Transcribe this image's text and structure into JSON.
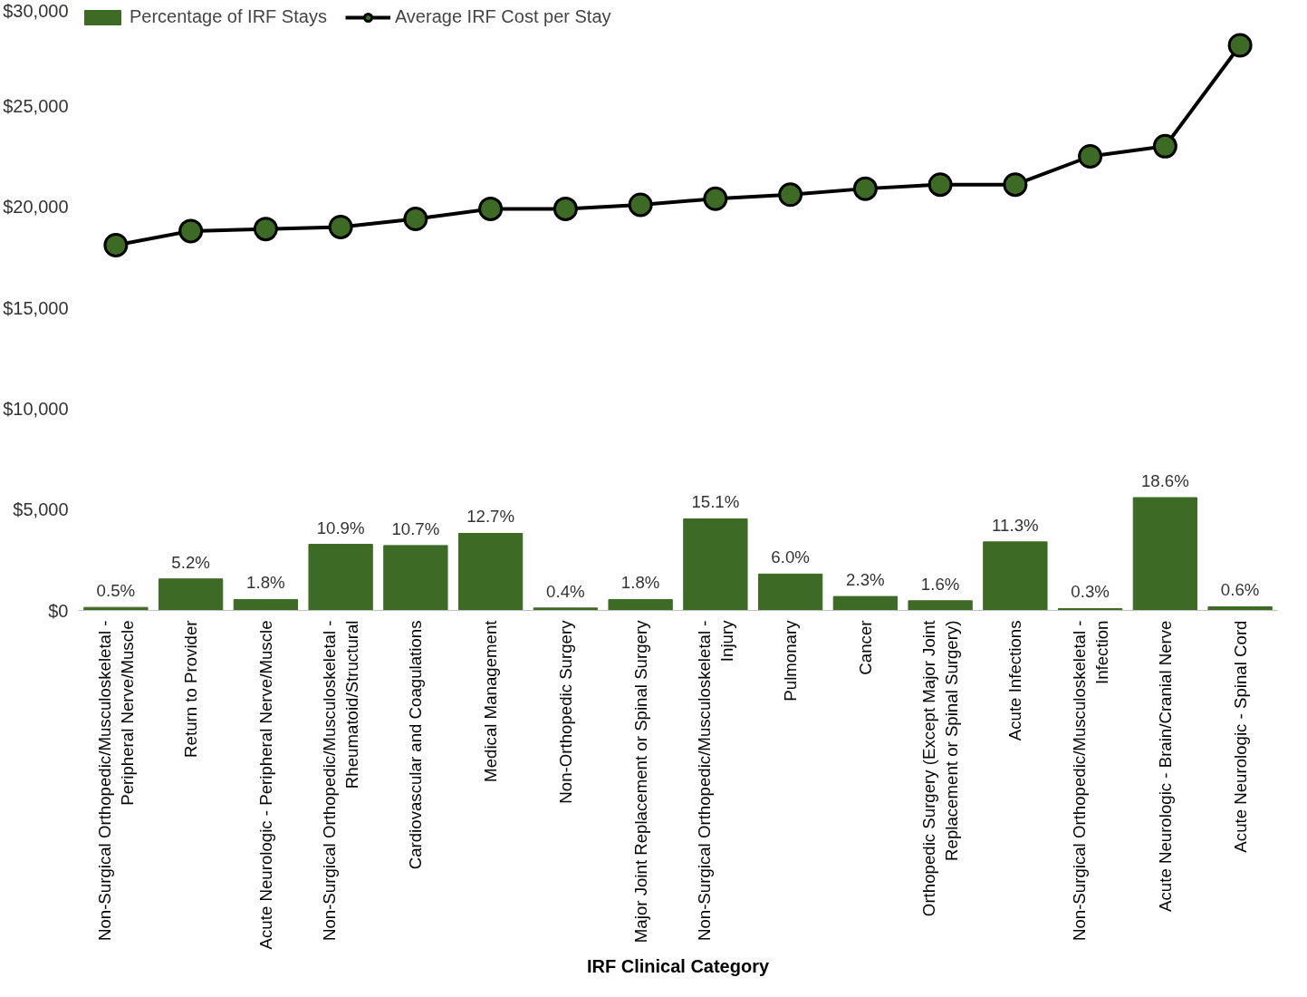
{
  "chart_data": {
    "type": "bar",
    "xlabel": "IRF Clinical Category",
    "categories": [
      "Non-Surgical Orthopedic/Musculoskeletal -\nPeripheral Nerve/Muscle",
      "Return to Provider",
      "Acute Neurologic - Peripheral Nerve/Muscle",
      "Non-Surgical Orthopedic/Musculoskeletal -\nRheumatoid/Structural",
      "Cardiovascular and Coagulations",
      "Medical Management",
      "Non-Orthopedic Surgery",
      "Major Joint Replacement or Spinal Surgery",
      "Non-Surgical Orthopedic/Musculoskeletal -\nInjury",
      "Pulmonary",
      "Cancer",
      "Orthopedic Surgery (Except Major Joint\nReplacement or Spinal Surgery)",
      "Acute Infections",
      "Non-Surgical Orthopedic/Musculoskeletal -\nInfection",
      "Acute Neurologic - Brain/Cranial Nerve",
      "Acute Neurologic - Spinal Cord"
    ],
    "series": [
      {
        "name": "Percentage of IRF Stays",
        "axis": "y2",
        "color": "#3d6b26",
        "values": [
          0.5,
          5.2,
          1.8,
          10.9,
          10.7,
          12.7,
          0.4,
          1.8,
          15.1,
          6.0,
          2.3,
          1.6,
          11.3,
          0.3,
          18.6,
          0.6
        ],
        "value_labels": [
          "0.5%",
          "5.2%",
          "1.8%",
          "10.9%",
          "10.7%",
          "12.7%",
          "0.4%",
          "1.8%",
          "15.1%",
          "6.0%",
          "2.3%",
          "1.6%",
          "11.3%",
          "0.3%",
          "18.6%",
          "0.6%"
        ]
      },
      {
        "name": "Average IRF Cost per Stay",
        "type": "line",
        "color": "#3d6b26",
        "values": [
          18100,
          18800,
          18900,
          19000,
          19400,
          19900,
          19900,
          20100,
          20400,
          20600,
          20900,
          21100,
          21100,
          22500,
          23000,
          28000
        ]
      }
    ],
    "ylim": [
      0,
      30000
    ],
    "yticks": [
      {
        "value": 0,
        "label": "$0"
      },
      {
        "value": 5000,
        "label": "$5,000"
      },
      {
        "value": 10000,
        "label": "$10,000"
      },
      {
        "value": 15000,
        "label": "$15,000"
      },
      {
        "value": 20000,
        "label": "$20,000"
      },
      {
        "value": 25000,
        "label": "$25,000"
      },
      {
        "value": 30000,
        "label": "$30,000"
      }
    ],
    "tick_labels": "y",
    "grid": false,
    "legend": "top left",
    "marker": "circle",
    "line_style": "solid"
  }
}
